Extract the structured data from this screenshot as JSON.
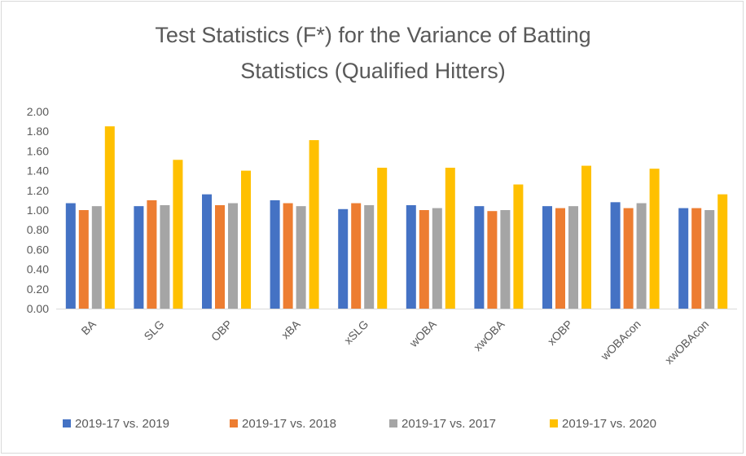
{
  "chart_data": {
    "type": "bar",
    "title_lines": [
      "Test Statistics (F*) for the Variance of Batting",
      "Statistics (Qualified Hitters)"
    ],
    "categories": [
      "BA",
      "SLG",
      "OBP",
      "xBA",
      "xSLG",
      "wOBA",
      "xwOBA",
      "xOBP",
      "wOBAcon",
      "xwOBAcon"
    ],
    "series": [
      {
        "name": "2019-17 vs. 2019",
        "color": "#4472c4",
        "values": [
          1.07,
          1.04,
          1.16,
          1.1,
          1.01,
          1.05,
          1.04,
          1.04,
          1.08,
          1.02
        ]
      },
      {
        "name": "2019-17 vs. 2018",
        "color": "#ed7d31",
        "values": [
          1.0,
          1.1,
          1.05,
          1.07,
          1.07,
          1.0,
          0.99,
          1.02,
          1.02,
          1.02
        ]
      },
      {
        "name": "2019-17 vs. 2017",
        "color": "#a5a5a5",
        "values": [
          1.04,
          1.05,
          1.07,
          1.04,
          1.05,
          1.02,
          1.0,
          1.04,
          1.07,
          1.0
        ]
      },
      {
        "name": "2019-17 vs. 2020",
        "color": "#ffc000",
        "values": [
          1.85,
          1.51,
          1.4,
          1.71,
          1.43,
          1.43,
          1.26,
          1.45,
          1.42,
          1.16
        ]
      }
    ],
    "y_ticks": [
      "0.00",
      "0.20",
      "0.40",
      "0.60",
      "0.80",
      "1.00",
      "1.20",
      "1.40",
      "1.60",
      "1.80",
      "2.00"
    ],
    "ylim": [
      0,
      2
    ],
    "grid": false,
    "legend_position": "bottom",
    "xlabel": "",
    "ylabel": ""
  }
}
